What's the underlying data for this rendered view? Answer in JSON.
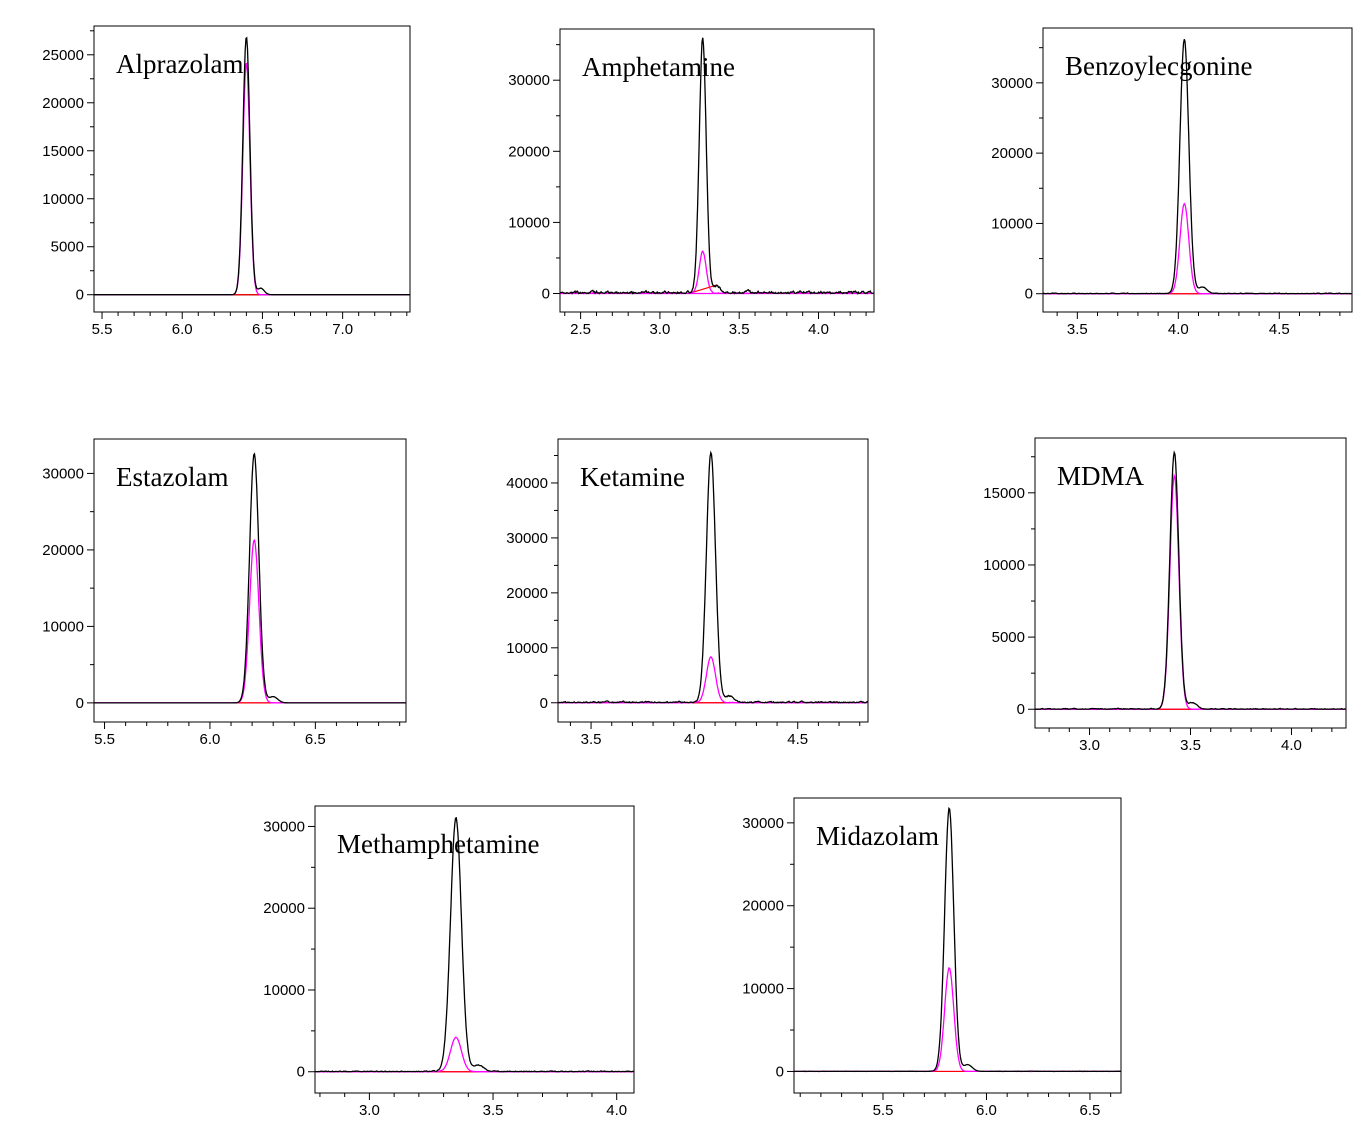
{
  "figure": {
    "colors": {
      "total": "#000000",
      "qualifier": "#ff00ff",
      "baseline": "#ff0000"
    }
  },
  "chart_data": [
    {
      "type": "line",
      "title": "Alprazolam",
      "xlim": [
        5.45,
        7.42
      ],
      "ylim": [
        -1800,
        28000
      ],
      "xticks": [
        "5.5",
        "6.0",
        "6.5",
        "7.0"
      ],
      "yticks": [
        "0",
        "5000",
        "10000",
        "15000",
        "20000",
        "25000"
      ],
      "peak_rt": 6.4,
      "series": [
        {
          "values": [
            26900,
            24200
          ]
        }
      ]
    },
    {
      "type": "line",
      "title": "Amphetamine",
      "xlim": [
        2.37,
        4.35
      ],
      "ylim": [
        -2600,
        37200
      ],
      "xticks": [
        "2.5",
        "3.0",
        "3.5",
        "4.0"
      ],
      "yticks": [
        "0",
        "10000",
        "20000",
        "30000"
      ],
      "peak_rt": 3.27,
      "series": [
        {
          "values": [
            35800,
            5900
          ]
        }
      ]
    },
    {
      "type": "line",
      "title": "Benzoylecgonine",
      "xlim": [
        3.33,
        4.86
      ],
      "ylim": [
        -2600,
        37800
      ],
      "xticks": [
        "3.5",
        "4.0",
        "4.5"
      ],
      "yticks": [
        "0",
        "10000",
        "20000",
        "30000"
      ],
      "peak_rt": 4.03,
      "series": [
        {
          "values": [
            36200,
            12800
          ]
        }
      ]
    },
    {
      "type": "line",
      "title": "Estazolam",
      "xlim": [
        5.45,
        6.93
      ],
      "ylim": [
        -2500,
        34500
      ],
      "xticks": [
        "5.5",
        "6.0",
        "6.5"
      ],
      "yticks": [
        "0",
        "10000",
        "20000",
        "30000"
      ],
      "peak_rt": 6.21,
      "series": [
        {
          "values": [
            32600,
            21300
          ]
        }
      ]
    },
    {
      "type": "line",
      "title": "Ketamine",
      "xlim": [
        3.34,
        4.84
      ],
      "ylim": [
        -3500,
        48000
      ],
      "xticks": [
        "3.5",
        "4.0",
        "4.5"
      ],
      "yticks": [
        "0",
        "10000",
        "20000",
        "30000",
        "40000"
      ],
      "peak_rt": 4.08,
      "series": [
        {
          "values": [
            45500,
            8300
          ]
        }
      ]
    },
    {
      "type": "line",
      "title": "MDMA",
      "xlim": [
        2.73,
        4.27
      ],
      "ylim": [
        -1300,
        18800
      ],
      "xticks": [
        "3.0",
        "3.5",
        "4.0"
      ],
      "yticks": [
        "0",
        "5000",
        "10000",
        "15000"
      ],
      "peak_rt": 3.42,
      "series": [
        {
          "values": [
            17800,
            16200
          ]
        }
      ]
    },
    {
      "type": "line",
      "title": "Methamphetamine",
      "xlim": [
        2.78,
        4.07
      ],
      "ylim": [
        -2600,
        32500
      ],
      "xticks": [
        "3.0",
        "3.5",
        "4.0"
      ],
      "yticks": [
        "0",
        "10000",
        "20000",
        "30000"
      ],
      "peak_rt": 3.35,
      "series": [
        {
          "values": [
            31000,
            4200
          ]
        }
      ]
    },
    {
      "type": "line",
      "title": "Midazolam",
      "xlim": [
        5.07,
        6.65
      ],
      "ylim": [
        -2600,
        33000
      ],
      "xticks": [
        "5.5",
        "6.0",
        "6.5"
      ],
      "yticks": [
        "0",
        "10000",
        "20000",
        "30000"
      ],
      "peak_rt": 5.82,
      "series": [
        {
          "values": [
            31800,
            12500
          ]
        }
      ]
    }
  ]
}
